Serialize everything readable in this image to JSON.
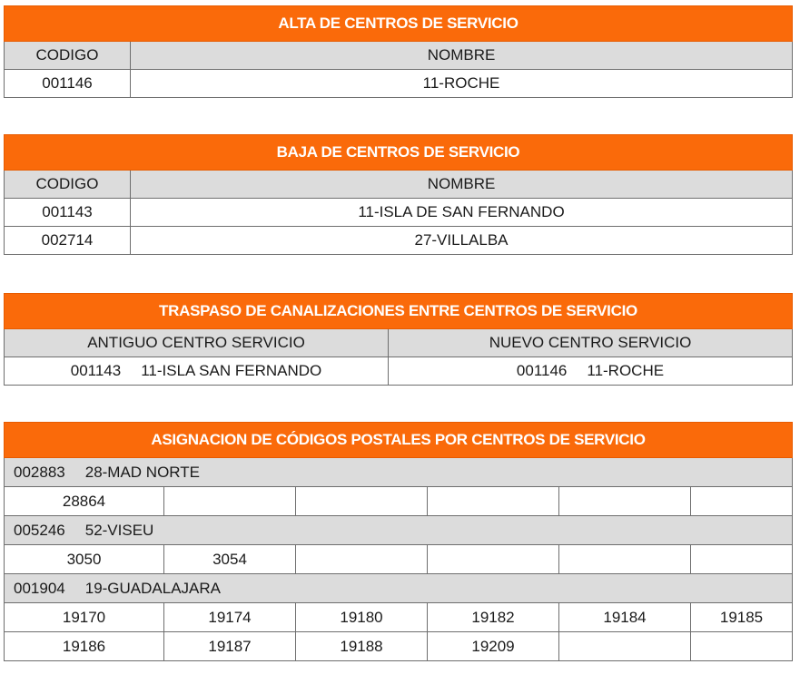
{
  "alta": {
    "title": "ALTA DE CENTROS DE SERVICIO",
    "header": {
      "codigo": "CODIGO",
      "nombre": "NOMBRE"
    },
    "rows": [
      {
        "codigo": "001146",
        "nombre": "11-ROCHE"
      }
    ]
  },
  "baja": {
    "title": "BAJA DE CENTROS DE SERVICIO",
    "header": {
      "codigo": "CODIGO",
      "nombre": "NOMBRE"
    },
    "rows": [
      {
        "codigo": "001143",
        "nombre": "11-ISLA DE SAN FERNANDO"
      },
      {
        "codigo": "002714",
        "nombre": "27-VILLALBA"
      }
    ]
  },
  "traspaso": {
    "title": "TRASPASO DE CANALIZACIONES ENTRE CENTROS DE SERVICIO",
    "header": {
      "antiguo": "ANTIGUO CENTRO SERVICIO",
      "nuevo": "NUEVO CENTRO SERVICIO"
    },
    "row": {
      "antiguo_codigo": "001143",
      "antiguo_nombre": "11-ISLA SAN FERNANDO",
      "nuevo_codigo": "001146",
      "nuevo_nombre": "11-ROCHE"
    }
  },
  "asignacion": {
    "title": "ASIGNACION DE CÓDIGOS POSTALES POR CENTROS DE SERVICIO",
    "groups": [
      {
        "codigo": "002883",
        "nombre": "28-MAD NORTE",
        "rows": [
          [
            "28864",
            "",
            "",
            "",
            "",
            ""
          ]
        ]
      },
      {
        "codigo": "005246",
        "nombre": "52-VISEU",
        "rows": [
          [
            "3050",
            "3054",
            "",
            "",
            "",
            ""
          ]
        ]
      },
      {
        "codigo": "001904",
        "nombre": "19-GUADALAJARA",
        "rows": [
          [
            "19170",
            "19174",
            "19180",
            "19182",
            "19184",
            "19185"
          ],
          [
            "19186",
            "19187",
            "19188",
            "19209",
            "",
            ""
          ]
        ]
      }
    ]
  },
  "colors": {
    "header_orange": "#fa6a0a",
    "subheader_gray": "#dcdcdc",
    "border": "#6e6e6e"
  }
}
